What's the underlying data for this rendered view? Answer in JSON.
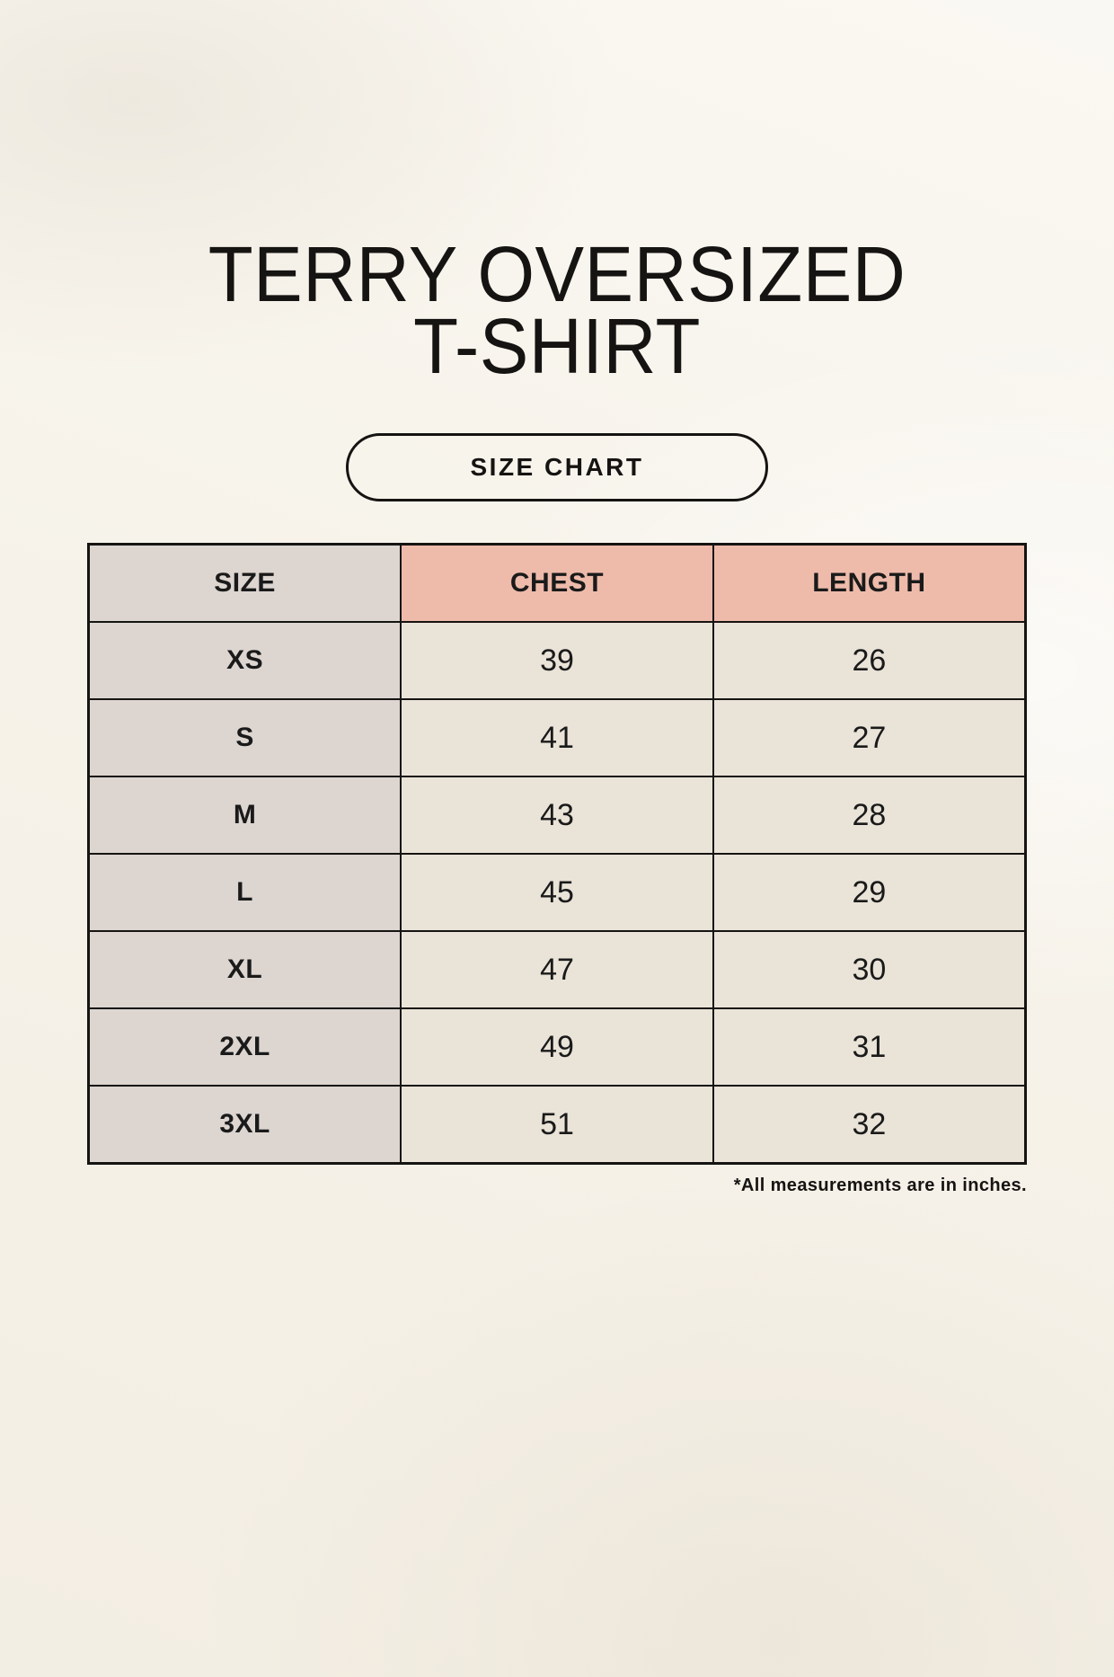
{
  "header": {
    "title_line1": "TERRY OVERSIZED",
    "title_line2": "T-SHIRT",
    "badge_label": "SIZE CHART"
  },
  "footnote": "*All measurements are in inches.",
  "colors": {
    "page_background": "#f6f2ea",
    "accent_pink": "#eebbab",
    "neutral_gray": "#dcd5d0",
    "cell_cream": "#eae3d8",
    "border_black": "#161412",
    "text": "#161412"
  },
  "chart_data": {
    "type": "table",
    "title": "TERRY OVERSIZED T-SHIRT",
    "subtitle": "SIZE CHART",
    "columns": [
      "SIZE",
      "CHEST",
      "LENGTH"
    ],
    "units": "inches",
    "rows": [
      {
        "size": "XS",
        "chest": "39",
        "length": "26"
      },
      {
        "size": "S",
        "chest": "41",
        "length": "27"
      },
      {
        "size": "M",
        "chest": "43",
        "length": "28"
      },
      {
        "size": "L",
        "chest": "45",
        "length": "29"
      },
      {
        "size": "XL",
        "chest": "47",
        "length": "30"
      },
      {
        "size": "2XL",
        "chest": "49",
        "length": "31"
      },
      {
        "size": "3XL",
        "chest": "51",
        "length": "32"
      }
    ],
    "note": "*All measurements are in inches."
  }
}
